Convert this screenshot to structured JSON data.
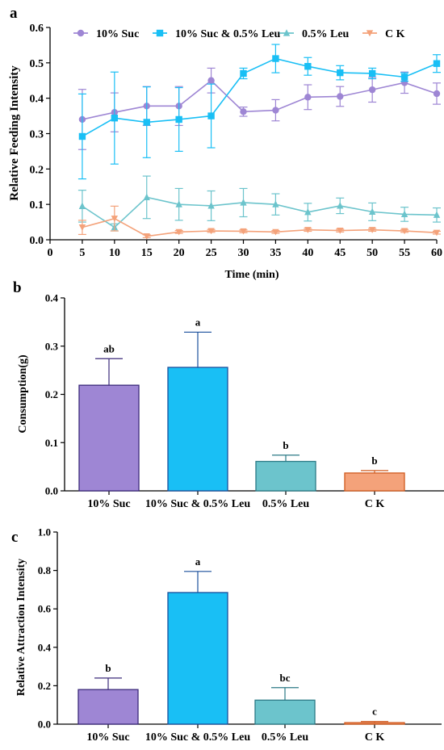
{
  "colors": {
    "suc": "#9e86d4",
    "suc_leu": "#19bff5",
    "leu": "#6cc4cc",
    "ck": "#f4a27a",
    "suc_dark": "#3b2a7a",
    "suc_leu_dark": "#1a4f9c",
    "leu_dark": "#2b7a86",
    "ck_dark": "#d05a1e"
  },
  "chart_data": [
    {
      "panel_label": "a",
      "type": "line",
      "xlabel": "Time (min)",
      "ylabel": "Relative Feeding Intensity",
      "xlim": [
        0,
        60
      ],
      "ylim": [
        0,
        0.6
      ],
      "xticks": [
        "0",
        "5",
        "10",
        "15",
        "20",
        "25",
        "30",
        "35",
        "40",
        "45",
        "50",
        "55",
        "60"
      ],
      "yticks": [
        "0.0",
        "0.1",
        "0.2",
        "0.3",
        "0.4",
        "0.5",
        "0.6"
      ],
      "legend_position": "top",
      "x": [
        5,
        10,
        15,
        20,
        25,
        30,
        35,
        40,
        45,
        50,
        55,
        60
      ],
      "series": [
        {
          "name": "10% Suc",
          "marker": "circle",
          "color_key": "suc",
          "values": [
            0.34,
            0.36,
            0.378,
            0.378,
            0.45,
            0.362,
            0.366,
            0.403,
            0.405,
            0.424,
            0.444,
            0.413
          ],
          "errors": [
            0.085,
            0.055,
            0.055,
            0.055,
            0.035,
            0.013,
            0.03,
            0.035,
            0.028,
            0.035,
            0.03,
            0.03
          ]
        },
        {
          "name": "10% Suc & 0.5% Leu",
          "marker": "square",
          "color_key": "suc_leu",
          "values": [
            0.292,
            0.344,
            0.332,
            0.34,
            0.35,
            0.47,
            0.512,
            0.49,
            0.472,
            0.47,
            0.46,
            0.498
          ],
          "errors": [
            0.12,
            0.13,
            0.1,
            0.09,
            0.09,
            0.015,
            0.04,
            0.025,
            0.02,
            0.015,
            0.012,
            0.025
          ]
        },
        {
          "name": "0.5% Leu",
          "marker": "triangle-up",
          "color_key": "leu",
          "values": [
            0.095,
            0.035,
            0.12,
            0.1,
            0.096,
            0.105,
            0.1,
            0.078,
            0.096,
            0.079,
            0.072,
            0.07
          ],
          "errors": [
            0.045,
            0.01,
            0.06,
            0.045,
            0.042,
            0.04,
            0.03,
            0.025,
            0.022,
            0.025,
            0.02,
            0.02
          ]
        },
        {
          "name": "C K",
          "marker": "triangle-down",
          "color_key": "ck",
          "values": [
            0.035,
            0.06,
            0.01,
            0.022,
            0.025,
            0.024,
            0.022,
            0.028,
            0.026,
            0.028,
            0.025,
            0.02
          ],
          "errors": [
            0.02,
            0.035,
            0.004,
            0.004,
            0.004,
            0.004,
            0.004,
            0.004,
            0.004,
            0.004,
            0.004,
            0.004
          ]
        }
      ]
    },
    {
      "panel_label": "b",
      "type": "bar",
      "xlabel": "",
      "ylabel": "Consumption(g)",
      "ylim": [
        0,
        0.4
      ],
      "yticks": [
        "0.0",
        "0.1",
        "0.2",
        "0.3",
        "0.4"
      ],
      "categories": [
        "10% Suc",
        "10% Suc & 0.5% Leu",
        "0.5% Leu",
        "C K"
      ],
      "values": [
        0.219,
        0.256,
        0.061,
        0.037
      ],
      "errors": [
        0.055,
        0.073,
        0.013,
        0.005
      ],
      "annotations": [
        "ab",
        "a",
        "b",
        "b"
      ],
      "color_keys": [
        "suc",
        "suc_leu",
        "leu",
        "ck"
      ]
    },
    {
      "panel_label": "c",
      "type": "bar",
      "xlabel": "",
      "ylabel": "Relative Attraction Intensity",
      "ylim": [
        0,
        1.0
      ],
      "yticks": [
        "0.0",
        "0.2",
        "0.4",
        "0.6",
        "0.8",
        "1.0"
      ],
      "categories": [
        "10% Suc",
        "10% Suc & 0.5% Leu",
        "0.5% Leu",
        "C K"
      ],
      "values": [
        0.18,
        0.685,
        0.125,
        0.008
      ],
      "errors": [
        0.06,
        0.11,
        0.065,
        0.006
      ],
      "annotations": [
        "b",
        "a",
        "bc",
        "c"
      ],
      "color_keys": [
        "suc",
        "suc_leu",
        "leu",
        "ck"
      ]
    }
  ]
}
